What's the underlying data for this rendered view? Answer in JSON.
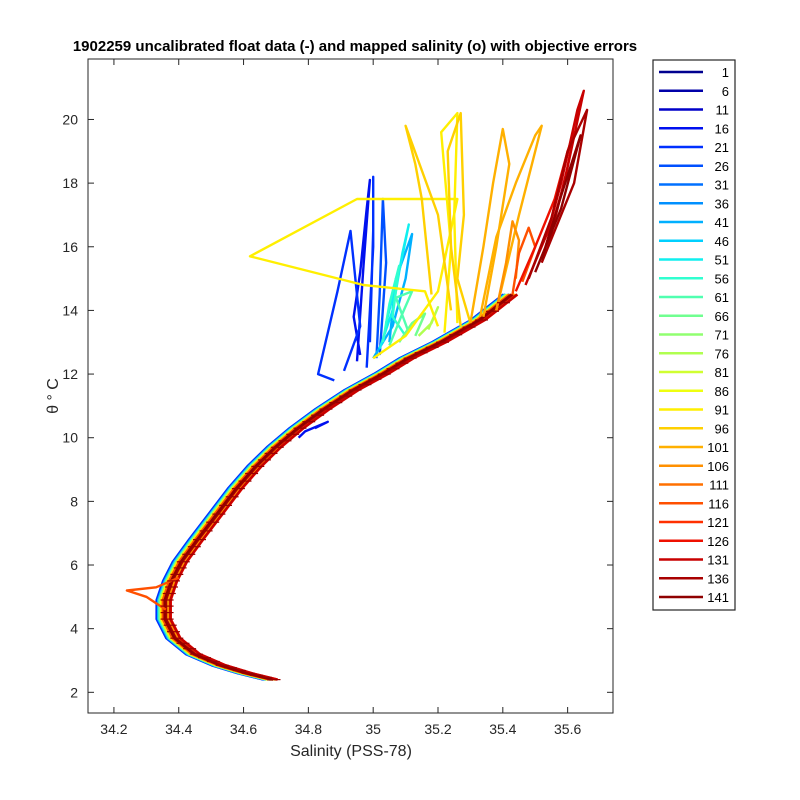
{
  "chart_data": {
    "type": "line",
    "title": "1902259 uncalibrated float data (-) and mapped salinity (o) with objective errors",
    "xlabel": "Salinity (PSS-78)",
    "ylabel": "θ ° C",
    "xlim": [
      34.12,
      35.74
    ],
    "ylim": [
      1.35,
      21.9
    ],
    "xticks": [
      34.2,
      34.4,
      34.6,
      34.8,
      35.0,
      35.2,
      35.4,
      35.6
    ],
    "xtick_labels": [
      "34.2",
      "34.4",
      "34.6",
      "34.8",
      "35",
      "35.2",
      "35.4",
      "35.6"
    ],
    "yticks": [
      2,
      4,
      6,
      8,
      10,
      12,
      14,
      16,
      18,
      20
    ],
    "ytick_labels": [
      "2",
      "4",
      "6",
      "8",
      "10",
      "12",
      "14",
      "16",
      "18",
      "20"
    ],
    "grid": false,
    "legend_position": "outside-right",
    "colormap": "jet",
    "series": [
      {
        "name": "1",
        "color": "#00008f"
      },
      {
        "name": "6",
        "color": "#0000a9"
      },
      {
        "name": "11",
        "color": "#0000c8"
      },
      {
        "name": "16",
        "color": "#0010ef"
      },
      {
        "name": "21",
        "color": "#0030ff"
      },
      {
        "name": "26",
        "color": "#0050ff"
      },
      {
        "name": "31",
        "color": "#0070ff"
      },
      {
        "name": "36",
        "color": "#0090ff"
      },
      {
        "name": "41",
        "color": "#00b0ff"
      },
      {
        "name": "46",
        "color": "#00d0ff"
      },
      {
        "name": "51",
        "color": "#10efef"
      },
      {
        "name": "56",
        "color": "#30ffd0"
      },
      {
        "name": "61",
        "color": "#50ffb0"
      },
      {
        "name": "66",
        "color": "#70ff90"
      },
      {
        "name": "71",
        "color": "#90ff70"
      },
      {
        "name": "76",
        "color": "#b0ff50"
      },
      {
        "name": "81",
        "color": "#d0ff30"
      },
      {
        "name": "86",
        "color": "#efff10"
      },
      {
        "name": "91",
        "color": "#ffef00"
      },
      {
        "name": "96",
        "color": "#ffd000"
      },
      {
        "name": "101",
        "color": "#ffb000"
      },
      {
        "name": "106",
        "color": "#ff9000"
      },
      {
        "name": "111",
        "color": "#ff7000"
      },
      {
        "name": "116",
        "color": "#ff5000"
      },
      {
        "name": "121",
        "color": "#ff3000"
      },
      {
        "name": "126",
        "color": "#ef1000"
      },
      {
        "name": "131",
        "color": "#c80000"
      },
      {
        "name": "136",
        "color": "#a90000"
      },
      {
        "name": "141",
        "color": "#8f0000"
      }
    ],
    "deep_curve": [
      [
        34.68,
        2.4
      ],
      [
        34.6,
        2.6
      ],
      [
        34.52,
        2.85
      ],
      [
        34.44,
        3.2
      ],
      [
        34.38,
        3.7
      ],
      [
        34.35,
        4.3
      ],
      [
        34.35,
        4.9
      ],
      [
        34.37,
        5.5
      ],
      [
        34.4,
        6.1
      ],
      [
        34.45,
        6.8
      ],
      [
        34.51,
        7.6
      ],
      [
        34.57,
        8.4
      ],
      [
        34.63,
        9.1
      ],
      [
        34.69,
        9.7
      ],
      [
        34.76,
        10.3
      ],
      [
        34.84,
        10.9
      ],
      [
        34.93,
        11.5
      ],
      [
        35.02,
        12.0
      ],
      [
        35.1,
        12.5
      ],
      [
        35.2,
        13.0
      ],
      [
        35.32,
        13.7
      ],
      [
        35.42,
        14.5
      ]
    ],
    "mixed_layer_segments": [
      {
        "series": "16",
        "points": [
          [
            34.96,
            12.6
          ],
          [
            34.94,
            13.8
          ],
          [
            34.96,
            15.2
          ],
          [
            34.98,
            17.2
          ],
          [
            34.99,
            18.1
          ],
          [
            34.97,
            15.4
          ],
          [
            34.95,
            12.4
          ]
        ]
      },
      {
        "series": "21",
        "points": [
          [
            34.98,
            12.2
          ],
          [
            34.99,
            14.0
          ],
          [
            35.0,
            16.0
          ],
          [
            35.0,
            18.2
          ],
          [
            35.0,
            16.5
          ],
          [
            34.99,
            13.0
          ]
        ]
      },
      {
        "series": "21",
        "points": [
          [
            34.91,
            12.1
          ],
          [
            34.96,
            13.5
          ],
          [
            34.93,
            16.5
          ],
          [
            34.89,
            14.6
          ],
          [
            34.83,
            12.0
          ],
          [
            34.88,
            11.8
          ]
        ]
      },
      {
        "series": "26",
        "points": [
          [
            35.01,
            12.5
          ],
          [
            35.02,
            14.5
          ],
          [
            35.03,
            17.5
          ],
          [
            35.04,
            15.5
          ],
          [
            35.02,
            12.6
          ]
        ]
      },
      {
        "series": "41",
        "points": [
          [
            35.0,
            12.5
          ],
          [
            35.06,
            13.5
          ],
          [
            35.1,
            15.0
          ],
          [
            35.12,
            16.4
          ],
          [
            35.07,
            15.0
          ],
          [
            35.05,
            13.0
          ]
        ]
      },
      {
        "series": "51",
        "points": [
          [
            35.02,
            12.8
          ],
          [
            35.06,
            14.0
          ],
          [
            35.09,
            15.8
          ],
          [
            35.11,
            16.7
          ],
          [
            35.08,
            15.2
          ],
          [
            35.04,
            13.6
          ]
        ]
      },
      {
        "series": "56",
        "points": [
          [
            35.03,
            13.0
          ],
          [
            35.05,
            14.2
          ],
          [
            35.08,
            15.4
          ],
          [
            35.06,
            13.8
          ],
          [
            35.1,
            13.2
          ]
        ]
      },
      {
        "series": "61",
        "points": [
          [
            35.05,
            12.9
          ],
          [
            35.09,
            13.9
          ],
          [
            35.12,
            14.6
          ],
          [
            35.07,
            14.4
          ],
          [
            35.11,
            13.3
          ]
        ]
      },
      {
        "series": "66",
        "points": [
          [
            35.08,
            13.0
          ],
          [
            35.12,
            13.6
          ],
          [
            35.16,
            13.9
          ],
          [
            35.13,
            13.2
          ]
        ]
      },
      {
        "series": "76",
        "points": [
          [
            35.14,
            13.2
          ],
          [
            35.18,
            13.6
          ],
          [
            35.2,
            14.1
          ],
          [
            35.17,
            13.4
          ]
        ]
      },
      {
        "series": "91",
        "points": [
          [
            35.0,
            12.5
          ],
          [
            35.1,
            13.2
          ],
          [
            35.2,
            14.6
          ],
          [
            35.26,
            17.5
          ],
          [
            35.2,
            17.5
          ],
          [
            34.95,
            17.5
          ],
          [
            34.62,
            15.7
          ],
          [
            34.97,
            14.8
          ],
          [
            35.16,
            14.6
          ],
          [
            35.2,
            13.5
          ]
        ]
      },
      {
        "series": "91",
        "points": [
          [
            35.22,
            13.3
          ],
          [
            35.24,
            16.0
          ],
          [
            35.21,
            19.6
          ],
          [
            35.26,
            20.2
          ],
          [
            35.25,
            17.0
          ],
          [
            35.26,
            13.6
          ]
        ]
      },
      {
        "series": "96",
        "points": [
          [
            35.27,
            13.5
          ],
          [
            35.24,
            16.0
          ],
          [
            35.23,
            19.0
          ],
          [
            35.27,
            20.2
          ],
          [
            35.28,
            17.0
          ],
          [
            35.26,
            15.0
          ],
          [
            35.3,
            13.6
          ]
        ]
      },
      {
        "series": "96",
        "points": [
          [
            35.18,
            14.5
          ],
          [
            35.15,
            17.5
          ],
          [
            35.13,
            18.6
          ],
          [
            35.1,
            19.8
          ],
          [
            35.2,
            17.0
          ],
          [
            35.24,
            14.0
          ]
        ]
      },
      {
        "series": "101",
        "points": [
          [
            35.3,
            13.6
          ],
          [
            35.34,
            16.0
          ],
          [
            35.37,
            18.0
          ],
          [
            35.4,
            19.7
          ],
          [
            35.42,
            18.6
          ],
          [
            35.38,
            16.0
          ],
          [
            35.34,
            13.8
          ]
        ]
      },
      {
        "series": "101",
        "points": [
          [
            35.33,
            13.8
          ],
          [
            35.38,
            16.3
          ],
          [
            35.44,
            18.0
          ],
          [
            35.5,
            19.5
          ],
          [
            35.52,
            19.8
          ],
          [
            35.45,
            17.0
          ],
          [
            35.38,
            14.0
          ]
        ]
      },
      {
        "series": "106",
        "points": [
          [
            35.38,
            14.0
          ],
          [
            35.41,
            15.5
          ],
          [
            35.43,
            16.8
          ],
          [
            35.45,
            16.2
          ],
          [
            35.44,
            15.0
          ]
        ]
      },
      {
        "series": "116",
        "points": [
          [
            35.43,
            14.5
          ],
          [
            35.45,
            15.8
          ],
          [
            35.48,
            16.6
          ],
          [
            35.5,
            16.0
          ],
          [
            35.46,
            14.9
          ]
        ]
      },
      {
        "series": "126",
        "points": [
          [
            35.44,
            14.6
          ],
          [
            35.5,
            16.0
          ],
          [
            35.56,
            17.5
          ],
          [
            35.6,
            19.0
          ],
          [
            35.62,
            19.6
          ],
          [
            35.59,
            18.0
          ],
          [
            35.52,
            15.6
          ]
        ]
      },
      {
        "series": "131",
        "points": [
          [
            35.47,
            14.8
          ],
          [
            35.54,
            16.5
          ],
          [
            35.58,
            18.0
          ],
          [
            35.63,
            20.3
          ],
          [
            35.65,
            20.9
          ],
          [
            35.6,
            18.5
          ],
          [
            35.54,
            16.0
          ]
        ]
      },
      {
        "series": "136",
        "points": [
          [
            35.48,
            15.0
          ],
          [
            35.55,
            16.9
          ],
          [
            35.6,
            19.0
          ],
          [
            35.66,
            20.3
          ],
          [
            35.62,
            18.0
          ],
          [
            35.52,
            15.5
          ]
        ]
      },
      {
        "series": "141",
        "points": [
          [
            35.5,
            15.2
          ],
          [
            35.58,
            17.2
          ],
          [
            35.64,
            19.5
          ],
          [
            35.58,
            17.6
          ],
          [
            35.52,
            15.6
          ]
        ]
      },
      {
        "series": "116",
        "points": [
          [
            34.36,
            4.6
          ],
          [
            34.3,
            5.0
          ],
          [
            34.24,
            5.2
          ],
          [
            34.33,
            5.3
          ],
          [
            34.4,
            5.6
          ]
        ]
      },
      {
        "series": "16",
        "points": [
          [
            34.77,
            10.0
          ],
          [
            34.79,
            10.2
          ],
          [
            34.86,
            10.5
          ],
          [
            34.82,
            10.3
          ]
        ]
      }
    ]
  }
}
